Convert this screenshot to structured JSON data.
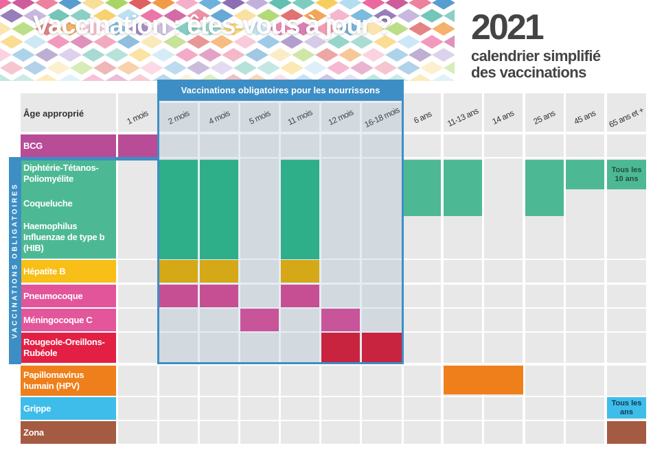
{
  "header": {
    "title": "Vaccination : êtes-vous à jour ?",
    "year": "2021",
    "subtitle_line1": "calendrier simplifié",
    "subtitle_line2": "des vaccinations"
  },
  "table": {
    "age_header": "Âge approprié",
    "columns": [
      "1 mois",
      "2 mois",
      "4 mois",
      "5 mois",
      "11 mois",
      "12 mois",
      "16-18 mois",
      "6 ans",
      "11-13 ans",
      "14 ans",
      "25 ans",
      "45 ans",
      "65 ans et +"
    ],
    "obligatory_infant_label": "Vaccinations obligatoires pour les nourrissons",
    "obligatory_side_label": "VACCINATIONS OBLIGATOIRES",
    "rows": {
      "bcg": "BCG",
      "dtp": "Diphtérie-Tétanos-Poliomyélite",
      "coqueluche": "Coqueluche",
      "hib": "Haemophilus Influenzae de type b (HIB)",
      "hepatite_b": "Hépatite B",
      "pneumocoque": "Pneumocoque",
      "meningocoque_c": "Méningocoque C",
      "ror": "Rougeole-Oreillons-Rubéole",
      "hpv": "Papillomavirus humain (HPV)",
      "grippe": "Grippe",
      "zona": "Zona"
    },
    "notes": {
      "dtp_65": "Tous les 10 ans",
      "grippe_65": "Tous les ans"
    }
  },
  "colors": {
    "bcg": "#b84c97",
    "dtp": "#4db994",
    "dtp_mark": "#2fae8a",
    "hepatite_b": "#f7bf17",
    "hepatite_b_mark": "#d4a817",
    "pneumocoque": "#e2559a",
    "pneumocoque_mark": "#c64f94",
    "meningocoque": "#e4569b",
    "meningocoque_mark": "#c8549a",
    "ror": "#e31f44",
    "ror_mark": "#c8243f",
    "hpv": "#ef7f1a",
    "grippe": "#3fbdea",
    "zona": "#a55a42",
    "obligatory_frame": "#3d8ec5"
  }
}
